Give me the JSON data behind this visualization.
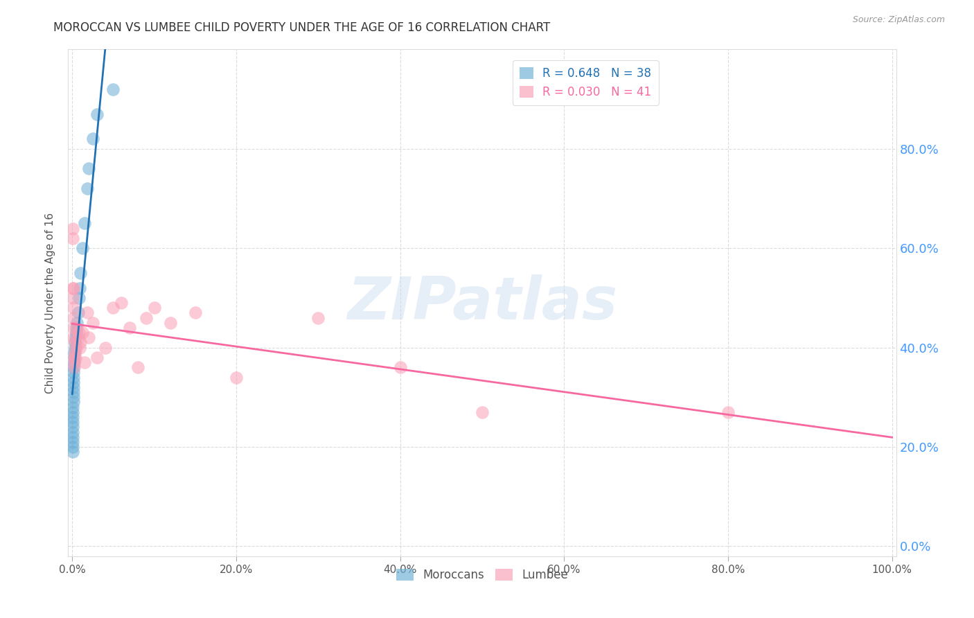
{
  "title": "MOROCCAN VS LUMBEE CHILD POVERTY UNDER THE AGE OF 16 CORRELATION CHART",
  "source": "Source: ZipAtlas.com",
  "ylabel": "Child Poverty Under the Age of 16",
  "watermark": "ZIPatlas",
  "moroccan_R": 0.648,
  "moroccan_N": 38,
  "lumbee_R": 0.03,
  "lumbee_N": 41,
  "moroccan_color": "#6baed6",
  "lumbee_color": "#fa9fb5",
  "moroccan_line_color": "#2171b5",
  "lumbee_line_color": "#f768a1",
  "background_color": "#ffffff",
  "grid_color": "#cccccc",
  "ytick_color": "#4499ff",
  "moroccan_x": [
    0.0002,
    0.0003,
    0.0004,
    0.0005,
    0.0005,
    0.0006,
    0.0007,
    0.0007,
    0.0008,
    0.0009,
    0.001,
    0.001,
    0.0012,
    0.0013,
    0.0014,
    0.0015,
    0.0016,
    0.0018,
    0.002,
    0.0022,
    0.0025,
    0.003,
    0.0035,
    0.004,
    0.0045,
    0.005,
    0.006,
    0.007,
    0.008,
    0.009,
    0.01,
    0.012,
    0.015,
    0.018,
    0.02,
    0.025,
    0.03,
    0.05
  ],
  "moroccan_y": [
    0.19,
    0.2,
    0.21,
    0.22,
    0.23,
    0.24,
    0.25,
    0.26,
    0.27,
    0.28,
    0.29,
    0.3,
    0.31,
    0.32,
    0.33,
    0.34,
    0.35,
    0.36,
    0.37,
    0.38,
    0.39,
    0.4,
    0.41,
    0.42,
    0.43,
    0.44,
    0.45,
    0.47,
    0.5,
    0.52,
    0.55,
    0.6,
    0.65,
    0.72,
    0.76,
    0.82,
    0.87,
    0.92
  ],
  "lumbee_x": [
    0.0003,
    0.0005,
    0.0006,
    0.0008,
    0.001,
    0.0012,
    0.0014,
    0.0016,
    0.0018,
    0.002,
    0.0022,
    0.0025,
    0.003,
    0.0035,
    0.004,
    0.005,
    0.006,
    0.007,
    0.008,
    0.009,
    0.01,
    0.012,
    0.015,
    0.018,
    0.02,
    0.025,
    0.03,
    0.04,
    0.05,
    0.06,
    0.07,
    0.08,
    0.09,
    0.1,
    0.12,
    0.15,
    0.2,
    0.3,
    0.4,
    0.5,
    0.8
  ],
  "lumbee_y": [
    0.62,
    0.64,
    0.5,
    0.52,
    0.48,
    0.44,
    0.46,
    0.52,
    0.42,
    0.38,
    0.36,
    0.37,
    0.39,
    0.41,
    0.38,
    0.4,
    0.44,
    0.42,
    0.43,
    0.4,
    0.41,
    0.43,
    0.37,
    0.47,
    0.42,
    0.45,
    0.38,
    0.4,
    0.48,
    0.49,
    0.44,
    0.36,
    0.46,
    0.48,
    0.45,
    0.47,
    0.34,
    0.46,
    0.36,
    0.27,
    0.27
  ],
  "xlim": [
    0.0,
    1.0
  ],
  "ylim": [
    0.0,
    1.0
  ],
  "yticks": [
    0.0,
    0.2,
    0.4,
    0.6,
    0.8
  ],
  "ytick_labels": [
    "0.0%",
    "20.0%",
    "40.0%",
    "60.0%",
    "80.0%"
  ],
  "xticks": [
    0.0,
    0.2,
    0.4,
    0.6,
    0.8,
    1.0
  ],
  "xtick_labels": [
    "0.0%",
    "20.0%",
    "40.0%",
    "60.0%",
    "80.0%",
    "100.0%"
  ]
}
